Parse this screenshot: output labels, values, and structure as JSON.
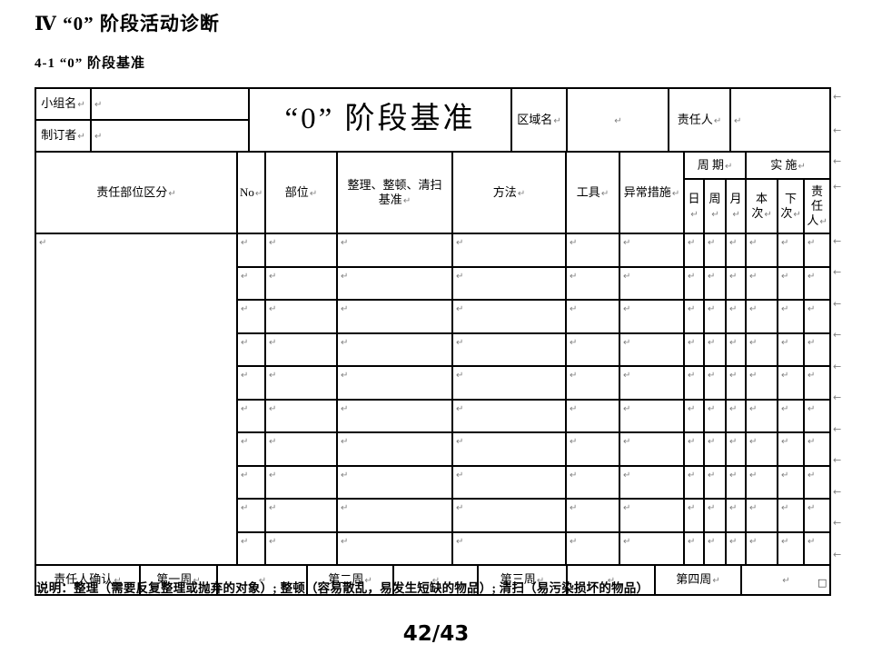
{
  "page": {
    "title": "Ⅳ “0” 阶段活动诊断",
    "subtitle": "4-1 “0” 阶段基准",
    "page_number": "42/43",
    "note": "说明：整理（需要反复整理或抛弃的对象）; 整顿（容易散乱，易发生短缺的物品）; 清扫（易污染损坏的物品）",
    "end_of_table_mark": "□"
  },
  "marks": {
    "para": "↵",
    "row_end": "←"
  },
  "header_top": {
    "group_label": "小组名",
    "group_value": "",
    "maker_label": "制订者",
    "maker_value": "",
    "form_title": "“0” 阶段基准",
    "area_label": "区域名",
    "area_value": "",
    "owner_label": "责任人",
    "owner_value": ""
  },
  "columns": {
    "zone": "责任部位区分",
    "no": "No",
    "part": "部位",
    "standard": "整理、整顿、清扫\n基准",
    "method": "方法",
    "tool": "工具",
    "abnormal": "异常措施",
    "cycle_group": "周 期",
    "impl_group": "实 施",
    "day": "日",
    "week": "周",
    "month": "月",
    "this_time": "本\n次",
    "next_time": "下\n次",
    "resp": "责\n任\n人"
  },
  "body": {
    "row_count": 10,
    "cells_per_row": 12
  },
  "footer": {
    "cells": [
      "责任人确认",
      "第一周",
      "",
      "第二周",
      "",
      "第三周",
      "",
      "第四周",
      ""
    ]
  },
  "colors": {
    "border": "#000000",
    "mark_gray": "#808080",
    "text": "#000000",
    "background": "#ffffff"
  }
}
